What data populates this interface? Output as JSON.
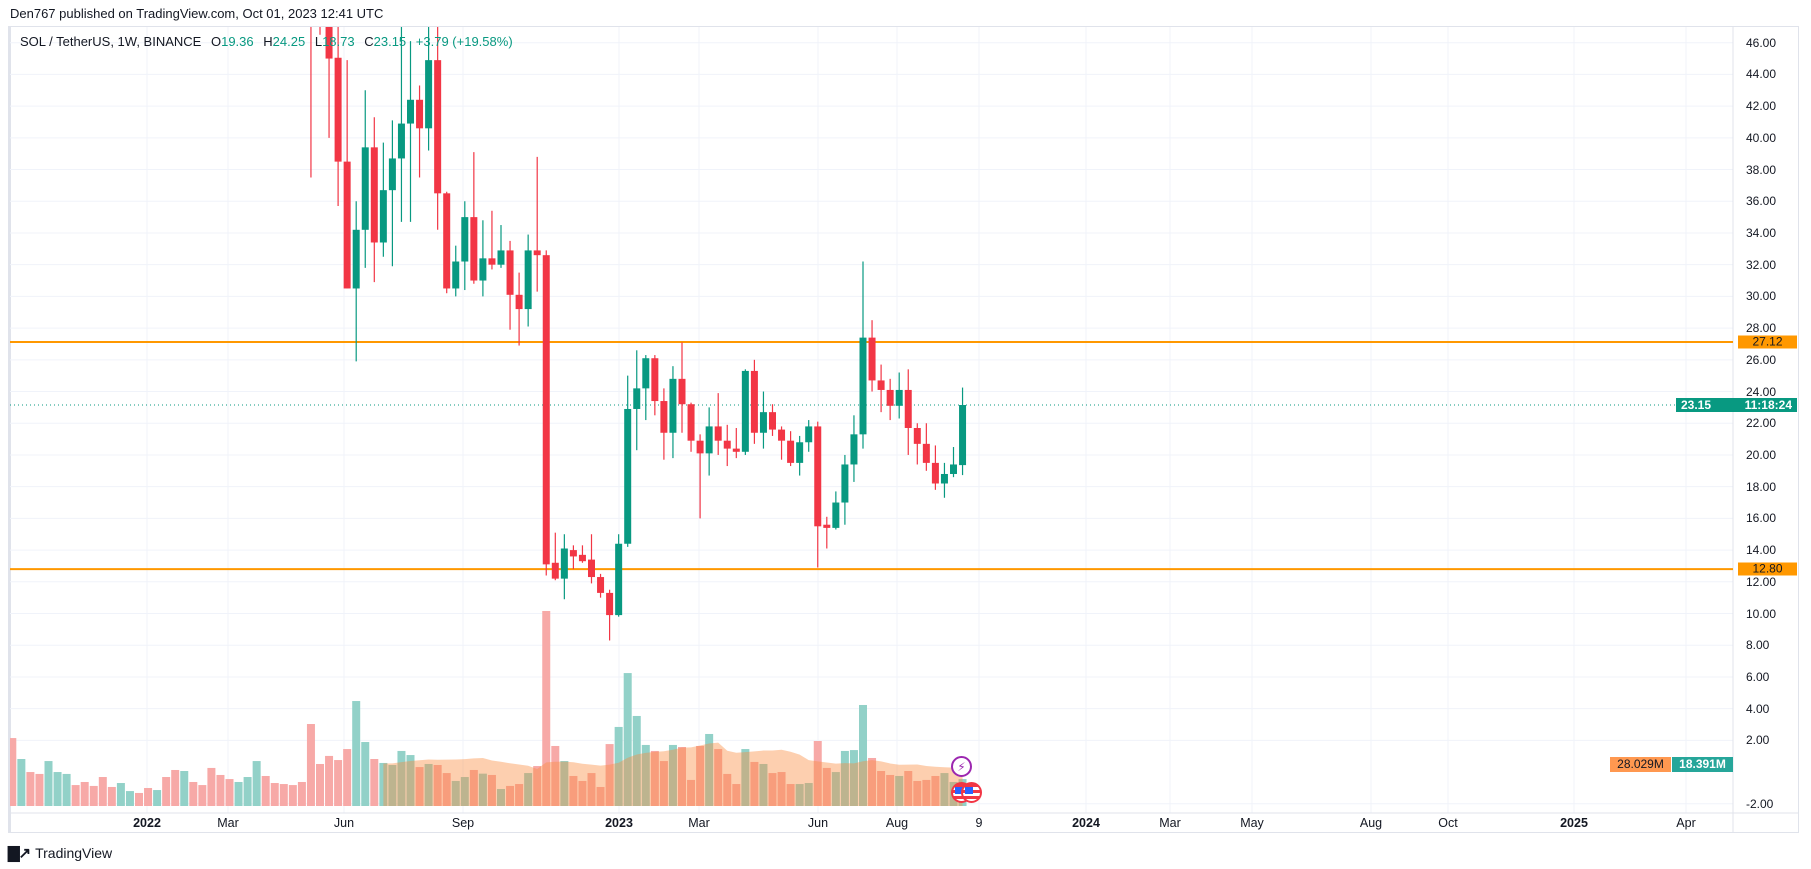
{
  "header": {
    "published": "Den767 published on TradingView.com, Oct 01, 2023 12:41 UTC"
  },
  "legend": {
    "symbol": "SOL / TetherUS, 1W, BINANCE",
    "o_label": "O",
    "o": "19.36",
    "h_label": "H",
    "h": "24.25",
    "l_label": "L",
    "l": "18.73",
    "c_label": "C",
    "c": "23.15",
    "change": "+3.79 (+19.58%)"
  },
  "price_labels": {
    "resistance": "27.12",
    "support": "12.80",
    "current": "23.15",
    "countdown": "11:18:24",
    "volume_ma": "28.029M",
    "volume_current": "18.391M"
  },
  "footer": {
    "logo_mark": "17",
    "brand": "TradingView"
  },
  "colors": {
    "up": "#089981",
    "down": "#F23645",
    "level": "#FF9800",
    "vol_up": "#92D1C8",
    "vol_down": "#F7A9A7",
    "vol_ma": "#FDCFAF",
    "event_purple": "#9C27B0"
  },
  "chart_data": {
    "type": "candlestick",
    "title": "SOL / TetherUS, 1W, BINANCE",
    "ylim": [
      -2,
      46
    ],
    "y_ticks": [
      "46.00",
      "44.00",
      "42.00",
      "40.00",
      "38.00",
      "36.00",
      "34.00",
      "32.00",
      "30.00",
      "28.00",
      "26.00",
      "24.00",
      "22.00",
      "20.00",
      "18.00",
      "16.00",
      "14.00",
      "12.00",
      "10.00",
      "8.00",
      "6.00",
      "4.00",
      "2.00",
      "-2.00"
    ],
    "x_ticks": [
      "2022",
      "Mar",
      "Jun",
      "Sep",
      "2023",
      "Mar",
      "Jun",
      "Aug",
      "9",
      "2024",
      "Mar",
      "May",
      "Aug",
      "Oct",
      "2025",
      "Apr"
    ],
    "horizontal_levels": [
      27.12,
      12.8
    ],
    "last_price": 23.15,
    "candles_start_bar": 34,
    "candles": [
      [
        52,
        58,
        37.5,
        49
      ],
      [
        49,
        53,
        46.5,
        48
      ],
      [
        48,
        50,
        40.0,
        45.0
      ],
      [
        45.05,
        47.5,
        35.7,
        38.5
      ],
      [
        38.5,
        44.9,
        30.5,
        30.5
      ],
      [
        30.5,
        36.0,
        25.9,
        34.2
      ],
      [
        34.2,
        43.0,
        31.8,
        39.4
      ],
      [
        39.4,
        41.3,
        30.9,
        33.4
      ],
      [
        33.4,
        39.7,
        32.5,
        36.7
      ],
      [
        36.7,
        41.1,
        31.9,
        38.7
      ],
      [
        38.7,
        47.0,
        34.7,
        40.9
      ],
      [
        40.9,
        46.1,
        34.7,
        42.4
      ],
      [
        42.4,
        43.3,
        37.5,
        40.6
      ],
      [
        40.6,
        47.0,
        39.2,
        44.9
      ],
      [
        44.9,
        47.0,
        34.2,
        36.5
      ],
      [
        36.5,
        36.6,
        30.2,
        30.5
      ],
      [
        30.5,
        33.2,
        30.0,
        32.2
      ],
      [
        32.2,
        36.0,
        30.4,
        35.0
      ],
      [
        35.0,
        39.1,
        30.8,
        31.0
      ],
      [
        31.0,
        34.8,
        30.0,
        32.4
      ],
      [
        32.4,
        35.4,
        31.7,
        32.0
      ],
      [
        32.0,
        34.5,
        31.8,
        32.9
      ],
      [
        32.9,
        33.5,
        27.9,
        30.1
      ],
      [
        30.1,
        31.5,
        26.9,
        29.2
      ],
      [
        29.2,
        33.9,
        28.1,
        32.9
      ],
      [
        32.9,
        38.8,
        30.3,
        32.6
      ],
      [
        32.6,
        32.9,
        12.4,
        13.1
      ],
      [
        13.2,
        15.1,
        12.1,
        12.2
      ],
      [
        12.2,
        15.0,
        10.9,
        14.1
      ],
      [
        14.0,
        14.3,
        12.8,
        13.6
      ],
      [
        13.7,
        14.3,
        13.2,
        13.3
      ],
      [
        13.4,
        15.0,
        11.9,
        12.3
      ],
      [
        12.3,
        12.5,
        11.0,
        11.3
      ],
      [
        11.3,
        11.5,
        8.3,
        9.9
      ],
      [
        9.9,
        15.0,
        9.8,
        14.4
      ],
      [
        14.4,
        25.0,
        14.2,
        22.9
      ],
      [
        22.9,
        26.6,
        20.3,
        24.2
      ],
      [
        24.2,
        26.3,
        22.2,
        26.1
      ],
      [
        26.1,
        26.3,
        22.5,
        23.4
      ],
      [
        23.4,
        24.2,
        19.7,
        21.4
      ],
      [
        21.4,
        25.6,
        19.8,
        24.8
      ],
      [
        24.8,
        27.1,
        21.4,
        23.2
      ],
      [
        23.2,
        23.3,
        20.2,
        20.9
      ],
      [
        20.9,
        21.3,
        16.0,
        20.1
      ],
      [
        20.1,
        23.0,
        18.7,
        21.8
      ],
      [
        21.8,
        23.9,
        20.0,
        20.9
      ],
      [
        20.9,
        21.9,
        19.3,
        20.4
      ],
      [
        20.4,
        21.7,
        19.8,
        20.2
      ],
      [
        20.2,
        25.4,
        20.0,
        25.3
      ],
      [
        25.3,
        26.0,
        20.7,
        21.4
      ],
      [
        21.4,
        24.0,
        20.4,
        22.7
      ],
      [
        22.7,
        23.2,
        21.2,
        21.6
      ],
      [
        21.6,
        21.8,
        19.7,
        20.9
      ],
      [
        20.9,
        21.5,
        19.3,
        19.5
      ],
      [
        19.5,
        21.2,
        18.7,
        20.8
      ],
      [
        20.8,
        22.2,
        20.2,
        21.8
      ],
      [
        21.8,
        22.1,
        12.9,
        15.5
      ],
      [
        15.6,
        16.1,
        14.1,
        15.4
      ],
      [
        15.4,
        17.7,
        15.3,
        17.0
      ],
      [
        17.0,
        20.0,
        15.6,
        19.4
      ],
      [
        19.4,
        22.5,
        18.3,
        21.3
      ],
      [
        21.3,
        32.2,
        20.4,
        27.4
      ],
      [
        27.4,
        28.5,
        24.0,
        24.7
      ],
      [
        24.7,
        25.7,
        22.7,
        24.1
      ],
      [
        24.1,
        24.8,
        22.2,
        23.1
      ],
      [
        23.1,
        25.2,
        22.3,
        24.1
      ],
      [
        24.1,
        25.4,
        20.0,
        21.7
      ],
      [
        21.7,
        22.0,
        19.4,
        20.7
      ],
      [
        20.7,
        22.0,
        19.0,
        19.5
      ],
      [
        19.5,
        20.6,
        17.8,
        18.2
      ],
      [
        18.2,
        19.5,
        17.3,
        18.8
      ],
      [
        18.8,
        20.5,
        18.6,
        19.4
      ],
      [
        19.36,
        24.25,
        18.73,
        23.15
      ]
    ],
    "volume_unit": "M",
    "volume": [
      46.4,
      32.1,
      23.2,
      21.9,
      30.7,
      23.2,
      21.9,
      14.3,
      16.4,
      13.7,
      19.8,
      13.0,
      15.7,
      10.2,
      8.9,
      12.3,
      10.9,
      19.8,
      24.6,
      23.9,
      16.4,
      14.3,
      26.0,
      21.2,
      18.4,
      16.4,
      19.8,
      30.7,
      20.5,
      15.7,
      15.0,
      14.3,
      16.4,
      56.0,
      28.7,
      34.2,
      31.4,
      38.9,
      71.7,
      43.7,
      32.1,
      29.4,
      28.0,
      37.6,
      34.8,
      26.6,
      28.7,
      28.0,
      22.5,
      17.1,
      19.8,
      24.6,
      22.1,
      21.2,
      11.6,
      13.7,
      15.0,
      22.5,
      27.3,
      133.2,
      41.0,
      30.7,
      20.5,
      17.1,
      22.5,
      13.0,
      42.3,
      54.0,
      90.8,
      61.5,
      41.7,
      37.6,
      30.7,
      41.7,
      40.3,
      17.8,
      41.0,
      49.2,
      38.9,
      21.9,
      15.0,
      38.9,
      30.1,
      28.7,
      22.5,
      23.2,
      15.0,
      15.0,
      15.7,
      44.4,
      26.0,
      23.2,
      37.6,
      38.2,
      69.0,
      32.8,
      23.9,
      21.2,
      20.5,
      23.9,
      17.1,
      17.8,
      20.5,
      22.5,
      16.4,
      18.391
    ],
    "volume_up_pre_candles": [
      0,
      1,
      0,
      0,
      1,
      1,
      1,
      0,
      0,
      0,
      0,
      0,
      1,
      1,
      0,
      0,
      1,
      0,
      0,
      1,
      0,
      0,
      0,
      0,
      0,
      1,
      1,
      1,
      0,
      0,
      0,
      0,
      0
    ],
    "volume_ma_start_bar": 42,
    "volume_ma_length": 20
  }
}
